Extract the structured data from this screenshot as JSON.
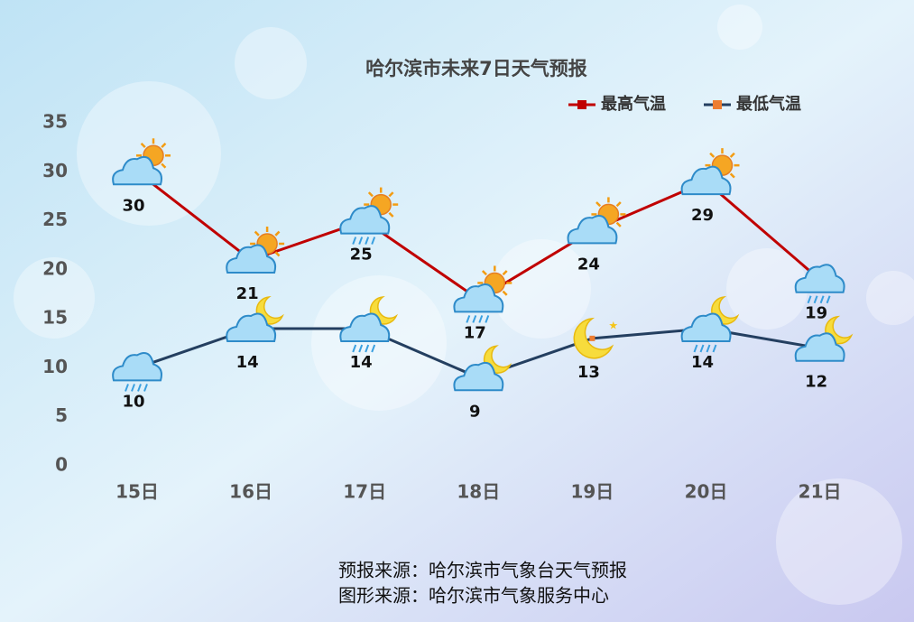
{
  "chart_data": {
    "type": "line",
    "title": "哈尔滨市未来7日天气预报",
    "categories": [
      "15日",
      "16日",
      "17日",
      "18日",
      "19日",
      "20日",
      "21日"
    ],
    "series": [
      {
        "name": "最高气温",
        "color": "#c00000",
        "marker_color": "#c00000",
        "values": [
          30,
          21,
          25,
          17,
          24,
          29,
          19
        ]
      },
      {
        "name": "最低气温",
        "color": "#243f60",
        "marker_color": "#ed7d31",
        "values": [
          10,
          14,
          14,
          9,
          13,
          14,
          12
        ]
      }
    ],
    "ylim": [
      0,
      35
    ],
    "yticks": [
      0,
      5,
      10,
      15,
      20,
      25,
      30,
      35
    ],
    "legend": "top-right",
    "footnotes": [
      "预报来源：哈尔滨市气象台天气预报",
      "图形来源：哈尔滨市气象服务中心"
    ]
  }
}
